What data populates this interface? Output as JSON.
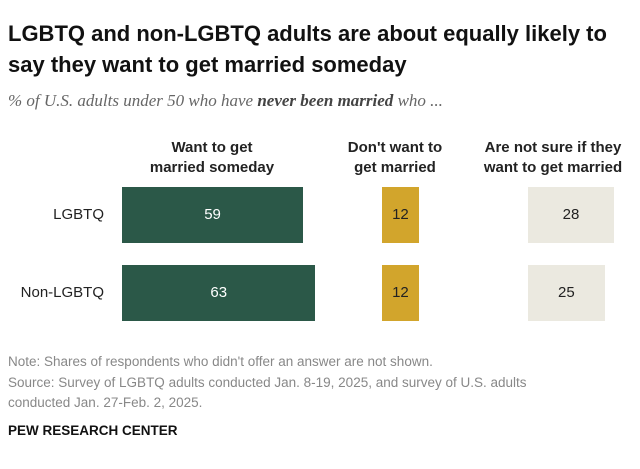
{
  "title": "LGBTQ and non-LGBTQ adults are about equally likely to say they want to get married someday",
  "subtitle": [
    "% of U.S. adults under 50 who have ",
    "never been married",
    " who ..."
  ],
  "chart_data": {
    "type": "bar",
    "categories": [
      "LGBTQ",
      "Non-LGBTQ"
    ],
    "series": [
      {
        "name": "Want to get married someday",
        "color": "#2b5848",
        "values": [
          59,
          63
        ]
      },
      {
        "name": "Don't want to get married",
        "color": "#d2a52c",
        "values": [
          12,
          12
        ]
      },
      {
        "name": "Are not sure if they want to get married",
        "color": "#ebe9e0",
        "values": [
          28,
          25
        ]
      }
    ]
  },
  "note": "Note: Shares of respondents who didn't offer an answer are not shown.",
  "source": "Source: Survey of LGBTQ adults conducted Jan. 8-19, 2025, and survey of U.S. adults conducted Jan. 27-Feb. 2, 2025.",
  "footer": "PEW RESEARCH CENTER"
}
